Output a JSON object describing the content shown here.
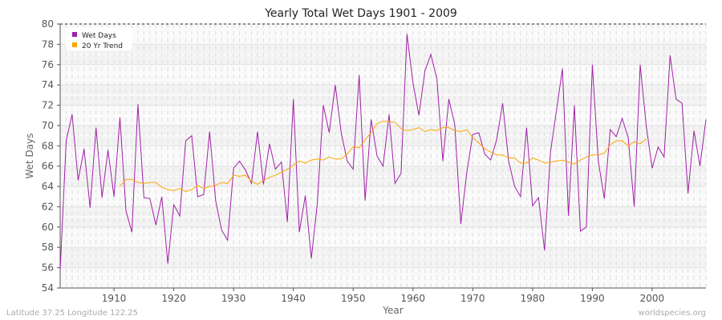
{
  "chart_data": {
    "type": "line",
    "title": "Yearly Total Wet Days 1901 - 2009",
    "xlabel": "Year",
    "ylabel": "Wet Days",
    "xlim": [
      1901,
      2009
    ],
    "ylim": [
      54,
      80
    ],
    "xticks": [
      1910,
      1920,
      1930,
      1940,
      1950,
      1960,
      1970,
      1980,
      1990,
      2000
    ],
    "yticks": [
      54,
      56,
      58,
      60,
      62,
      64,
      66,
      68,
      70,
      72,
      74,
      76,
      78,
      80
    ],
    "grid": true,
    "legend_position": "top-left",
    "series": [
      {
        "name": "Wet Days",
        "color": "#a020a8",
        "x_start": 1901,
        "values": [
          55.7,
          68.5,
          71.1,
          64.6,
          67.7,
          61.9,
          69.8,
          62.9,
          67.6,
          63.0,
          70.8,
          61.6,
          59.5,
          72.1,
          62.9,
          62.8,
          60.2,
          63.0,
          56.4,
          62.2,
          61.1,
          68.5,
          69.0,
          63.0,
          63.2,
          69.4,
          62.6,
          59.7,
          58.7,
          65.8,
          66.5,
          65.6,
          64.3,
          69.4,
          64.2,
          68.2,
          65.7,
          66.4,
          60.5,
          72.6,
          59.5,
          63.1,
          56.9,
          62.3,
          72.0,
          69.3,
          74.0,
          69.3,
          66.5,
          65.7,
          75.0,
          62.6,
          70.6,
          67.0,
          66.0,
          71.1,
          64.3,
          65.3,
          79.0,
          74.2,
          71.0,
          75.4,
          77.0,
          74.6,
          66.5,
          72.6,
          70.1,
          60.3,
          65.4,
          69.1,
          69.3,
          67.2,
          66.6,
          68.6,
          72.2,
          66.5,
          64.0,
          63.0,
          69.8,
          62.1,
          62.9,
          57.7,
          67.4,
          71.5,
          75.6,
          61.1,
          72.0,
          59.6,
          60.0,
          76.0,
          66.5,
          62.8,
          69.6,
          68.9,
          70.7,
          68.8,
          62.0,
          76.0,
          70.0,
          65.8,
          67.9,
          66.9,
          76.9,
          72.6,
          72.2,
          63.3,
          69.5,
          66.0,
          70.6
        ]
      },
      {
        "name": "20 Yr Trend",
        "color": "#ffa500",
        "x_start": 1911,
        "values": [
          64.0,
          64.7,
          64.7,
          64.4,
          64.3,
          64.4,
          64.4,
          63.9,
          63.7,
          63.6,
          63.8,
          63.5,
          63.7,
          64.1,
          63.8,
          64.0,
          64.1,
          64.4,
          64.3,
          65.1,
          65.0,
          65.1,
          64.5,
          64.2,
          64.6,
          64.9,
          65.1,
          65.4,
          65.7,
          66.1,
          66.5,
          66.3,
          66.6,
          66.7,
          66.6,
          66.9,
          66.7,
          66.7,
          67.2,
          67.9,
          67.8,
          68.6,
          69.3,
          70.2,
          70.4,
          70.4,
          70.3,
          69.7,
          69.5,
          69.6,
          69.8,
          69.4,
          69.6,
          69.5,
          69.8,
          69.8,
          69.5,
          69.4,
          69.6,
          68.8,
          68.3,
          67.7,
          67.4,
          67.1,
          67.1,
          66.8,
          66.8,
          66.3,
          66.3,
          66.8,
          66.6,
          66.3,
          66.4,
          66.5,
          66.6,
          66.4,
          66.2,
          66.6,
          66.9,
          67.1,
          67.1,
          67.3,
          68.1,
          68.5,
          68.5,
          68.0,
          68.4,
          68.2,
          68.7
        ]
      }
    ]
  },
  "footer": {
    "location": "Latitude 37.25 Longitude 122.25",
    "source": "worldspecies.org"
  }
}
